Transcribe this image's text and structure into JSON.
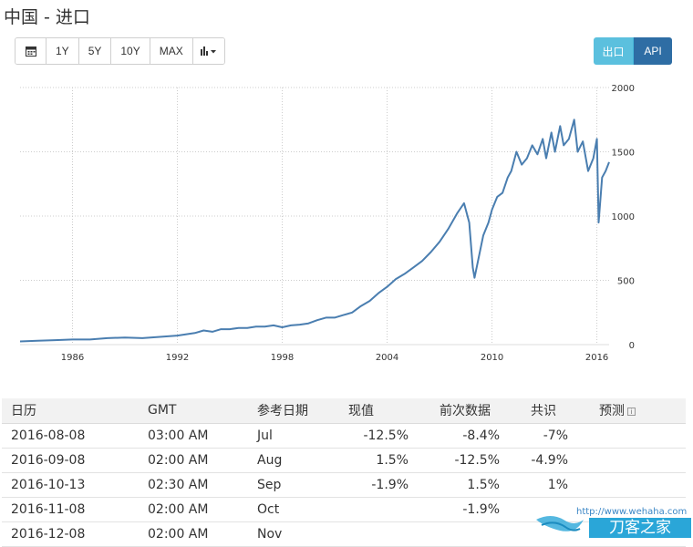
{
  "page": {
    "title": "中国 - 进口"
  },
  "toolbar": {
    "calendar_icon": "calendar-icon",
    "ranges": [
      "1Y",
      "5Y",
      "10Y",
      "MAX"
    ],
    "chart_type_icon": "bar-chart-icon",
    "export_label": "出口",
    "api_label": "API",
    "export_color": "#5bc0de",
    "api_color": "#2e6da4"
  },
  "chart_data": {
    "type": "line",
    "title": "",
    "xlabel": "",
    "ylabel": "",
    "x_ticks": [
      "1986",
      "1992",
      "1998",
      "2004",
      "2010",
      "2016"
    ],
    "y_ticks": [
      "0",
      "500",
      "1000",
      "1500",
      "2000"
    ],
    "ylim": [
      0,
      2000
    ],
    "xlim": [
      1983.0,
      2016.7
    ],
    "line_color": "#4a7eb0",
    "grid": true,
    "series": [
      {
        "x": [
          1983.0,
          1984.0,
          1985.0,
          1986.0,
          1987.0,
          1988.0,
          1989.0,
          1990.0,
          1991.0,
          1992.0,
          1993.0,
          1993.5,
          1994.0,
          1994.5,
          1995.0,
          1995.5,
          1996.0,
          1996.5,
          1997.0,
          1997.5,
          1998.0,
          1998.5,
          1999.0,
          1999.5,
          2000.0,
          2000.5,
          2001.0,
          2001.5,
          2002.0,
          2002.5,
          2003.0,
          2003.5,
          2004.0,
          2004.5,
          2005.0,
          2005.5,
          2006.0,
          2006.5,
          2007.0,
          2007.5,
          2008.0,
          2008.4,
          2008.7,
          2008.9,
          2009.0,
          2009.2,
          2009.5,
          2009.8,
          2010.0,
          2010.3,
          2010.6,
          2010.9,
          2011.1,
          2011.4,
          2011.7,
          2012.0,
          2012.3,
          2012.6,
          2012.9,
          2013.1,
          2013.4,
          2013.6,
          2013.9,
          2014.1,
          2014.4,
          2014.7,
          2014.9,
          2015.2,
          2015.5,
          2015.8,
          2016.0,
          2016.1,
          2016.3,
          2016.5,
          2016.7
        ],
        "values": [
          25,
          30,
          35,
          40,
          40,
          50,
          55,
          50,
          60,
          70,
          90,
          110,
          100,
          120,
          120,
          130,
          130,
          140,
          140,
          150,
          135,
          150,
          155,
          165,
          190,
          210,
          210,
          230,
          250,
          300,
          340,
          400,
          450,
          510,
          550,
          600,
          650,
          720,
          800,
          900,
          1020,
          1100,
          950,
          600,
          520,
          650,
          850,
          950,
          1050,
          1150,
          1180,
          1300,
          1350,
          1500,
          1400,
          1450,
          1550,
          1480,
          1600,
          1450,
          1650,
          1500,
          1700,
          1550,
          1600,
          1750,
          1500,
          1580,
          1350,
          1450,
          1600,
          950,
          1300,
          1350,
          1420
        ]
      }
    ]
  },
  "table": {
    "headers": [
      "日历",
      "GMT",
      "参考日期",
      "现值",
      "前次数据",
      "共识",
      "预测"
    ],
    "rows": [
      [
        "2016-08-08",
        "03:00 AM",
        "Jul",
        "-12.5%",
        "-8.4%",
        "-7%",
        ""
      ],
      [
        "2016-09-08",
        "02:00 AM",
        "Aug",
        "1.5%",
        "-12.5%",
        "-4.9%",
        ""
      ],
      [
        "2016-10-13",
        "02:30 AM",
        "Sep",
        "-1.9%",
        "1.5%",
        "1%",
        ""
      ],
      [
        "2016-11-08",
        "02:00 AM",
        "Oct",
        "",
        "-1.9%",
        "",
        ""
      ],
      [
        "2016-12-08",
        "02:00 AM",
        "Nov",
        "",
        "",
        "",
        ""
      ]
    ]
  },
  "watermark": {
    "url": "http://www.wehaha.com",
    "brand": "刀客之家"
  }
}
